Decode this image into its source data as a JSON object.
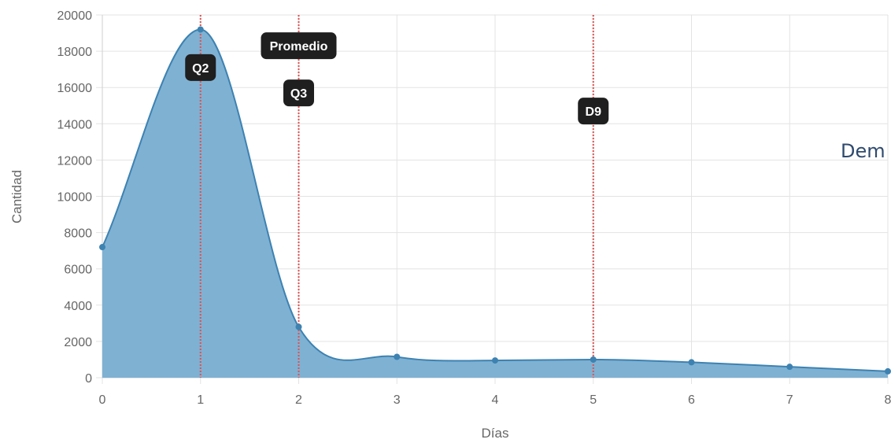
{
  "chart_data": {
    "type": "area",
    "xlabel": "Días",
    "ylabel": "Cantidad",
    "xlim": [
      0,
      8
    ],
    "ylim": [
      0,
      20000
    ],
    "x_ticks": [
      "0",
      "1",
      "2",
      "3",
      "4",
      "5",
      "6",
      "7",
      "8"
    ],
    "y_ticks": [
      "0",
      "2000",
      "4000",
      "6000",
      "8000",
      "10000",
      "12000",
      "14000",
      "16000",
      "18000",
      "20000"
    ],
    "grid": true,
    "series": [
      {
        "x": [
          0,
          1,
          2,
          3,
          4,
          5,
          6,
          7,
          8
        ],
        "values": [
          7200,
          19200,
          2800,
          1150,
          950,
          1000,
          850,
          600,
          350
        ]
      }
    ],
    "annotations": [
      {
        "label": "Q2",
        "x": 1,
        "y": 17100
      },
      {
        "label": "Promedio",
        "x": 2,
        "y": 18300
      },
      {
        "label": "Q3",
        "x": 2,
        "y": 15700
      },
      {
        "label": "D9",
        "x": 5,
        "y": 14700
      }
    ],
    "vertical_lines_x": [
      1,
      2,
      5
    ],
    "colors": {
      "fill": "#7fb1d3",
      "line": "#3d82b1",
      "points": "#3d82b1",
      "grid": "#e3e3e3",
      "vline": "#e0504f",
      "badge": "#1f1f1f"
    }
  },
  "side_text": "Dem"
}
